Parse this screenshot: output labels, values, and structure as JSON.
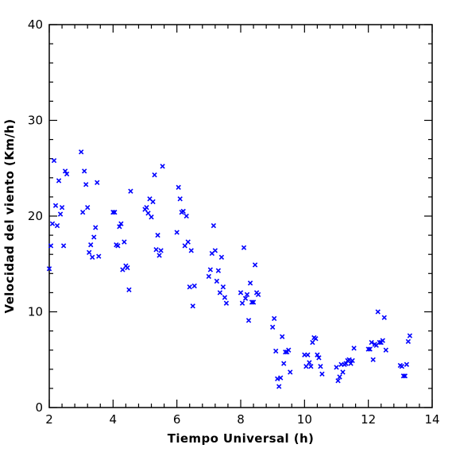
{
  "chart_data": {
    "type": "scatter",
    "title": "",
    "xlabel": "Tiempo Universal (h)",
    "ylabel": "Velocidad del viento (Km/h)",
    "xlim": [
      2,
      14
    ],
    "ylim": [
      0,
      40
    ],
    "x_ticks": [
      2,
      4,
      6,
      8,
      10,
      12,
      14
    ],
    "y_ticks": [
      0,
      10,
      20,
      30,
      40
    ],
    "grid": false,
    "legend": "none",
    "marker": "x",
    "marker_color": "#0000ff",
    "points": [
      [
        2.0,
        14.5
      ],
      [
        2.05,
        16.9
      ],
      [
        2.1,
        19.2
      ],
      [
        2.15,
        25.8
      ],
      [
        2.2,
        21.1
      ],
      [
        2.25,
        19.0
      ],
      [
        2.3,
        23.7
      ],
      [
        2.35,
        20.2
      ],
      [
        2.4,
        20.9
      ],
      [
        2.45,
        16.9
      ],
      [
        2.5,
        24.7
      ],
      [
        2.55,
        24.4
      ],
      [
        3.0,
        26.7
      ],
      [
        3.05,
        20.4
      ],
      [
        3.1,
        24.7
      ],
      [
        3.15,
        23.3
      ],
      [
        3.2,
        20.9
      ],
      [
        3.25,
        16.2
      ],
      [
        3.3,
        17.0
      ],
      [
        3.35,
        15.7
      ],
      [
        3.4,
        17.8
      ],
      [
        3.45,
        18.8
      ],
      [
        3.5,
        23.5
      ],
      [
        3.55,
        15.8
      ],
      [
        4.0,
        20.4
      ],
      [
        4.05,
        20.4
      ],
      [
        4.1,
        17.0
      ],
      [
        4.15,
        16.9
      ],
      [
        4.2,
        18.9
      ],
      [
        4.25,
        19.2
      ],
      [
        4.3,
        14.4
      ],
      [
        4.35,
        17.3
      ],
      [
        4.4,
        14.8
      ],
      [
        4.45,
        14.6
      ],
      [
        4.5,
        12.3
      ],
      [
        4.55,
        22.6
      ],
      [
        5.0,
        20.7
      ],
      [
        5.05,
        20.9
      ],
      [
        5.1,
        20.3
      ],
      [
        5.15,
        21.8
      ],
      [
        5.2,
        19.9
      ],
      [
        5.25,
        21.5
      ],
      [
        5.3,
        24.3
      ],
      [
        5.35,
        16.5
      ],
      [
        5.4,
        18.0
      ],
      [
        5.45,
        15.9
      ],
      [
        5.5,
        16.4
      ],
      [
        5.55,
        25.2
      ],
      [
        6.0,
        18.3
      ],
      [
        6.05,
        23.0
      ],
      [
        6.1,
        21.8
      ],
      [
        6.15,
        20.4
      ],
      [
        6.2,
        20.5
      ],
      [
        6.25,
        16.9
      ],
      [
        6.3,
        20.0
      ],
      [
        6.35,
        17.3
      ],
      [
        6.4,
        12.6
      ],
      [
        6.45,
        16.4
      ],
      [
        6.5,
        10.6
      ],
      [
        6.55,
        12.7
      ],
      [
        7.0,
        13.7
      ],
      [
        7.05,
        14.4
      ],
      [
        7.1,
        16.1
      ],
      [
        7.15,
        19.0
      ],
      [
        7.2,
        16.4
      ],
      [
        7.25,
        13.2
      ],
      [
        7.3,
        14.3
      ],
      [
        7.35,
        12.0
      ],
      [
        7.4,
        15.7
      ],
      [
        7.45,
        12.6
      ],
      [
        7.5,
        11.5
      ],
      [
        7.55,
        10.9
      ],
      [
        8.0,
        12.0
      ],
      [
        8.05,
        10.9
      ],
      [
        8.1,
        16.7
      ],
      [
        8.15,
        11.4
      ],
      [
        8.2,
        11.8
      ],
      [
        8.25,
        9.1
      ],
      [
        8.3,
        13.0
      ],
      [
        8.35,
        11.0
      ],
      [
        8.4,
        11.0
      ],
      [
        8.45,
        14.9
      ],
      [
        8.5,
        12.0
      ],
      [
        8.55,
        11.8
      ],
      [
        9.0,
        8.4
      ],
      [
        9.05,
        9.3
      ],
      [
        9.1,
        5.9
      ],
      [
        9.15,
        3.0
      ],
      [
        9.2,
        2.2
      ],
      [
        9.25,
        3.1
      ],
      [
        9.3,
        7.4
      ],
      [
        9.35,
        4.6
      ],
      [
        9.4,
        5.8
      ],
      [
        9.45,
        5.8
      ],
      [
        9.5,
        6.0
      ],
      [
        9.55,
        3.7
      ],
      [
        10.0,
        5.5
      ],
      [
        10.05,
        4.3
      ],
      [
        10.1,
        5.5
      ],
      [
        10.15,
        4.7
      ],
      [
        10.2,
        4.3
      ],
      [
        10.25,
        6.8
      ],
      [
        10.3,
        7.3
      ],
      [
        10.35,
        7.2
      ],
      [
        10.4,
        5.5
      ],
      [
        10.45,
        5.2
      ],
      [
        10.5,
        4.3
      ],
      [
        10.55,
        3.5
      ],
      [
        11.0,
        4.2
      ],
      [
        11.05,
        2.8
      ],
      [
        11.1,
        3.2
      ],
      [
        11.15,
        4.5
      ],
      [
        11.2,
        3.7
      ],
      [
        11.25,
        4.5
      ],
      [
        11.3,
        4.6
      ],
      [
        11.35,
        4.9
      ],
      [
        11.4,
        5.0
      ],
      [
        11.45,
        4.6
      ],
      [
        11.5,
        4.9
      ],
      [
        11.55,
        6.2
      ],
      [
        12.0,
        6.1
      ],
      [
        12.05,
        6.1
      ],
      [
        12.1,
        6.8
      ],
      [
        12.15,
        5.0
      ],
      [
        12.2,
        6.6
      ],
      [
        12.25,
        6.5
      ],
      [
        12.3,
        10.0
      ],
      [
        12.35,
        6.8
      ],
      [
        12.4,
        6.8
      ],
      [
        12.45,
        7.0
      ],
      [
        12.5,
        9.4
      ],
      [
        12.55,
        6.0
      ],
      [
        13.0,
        4.4
      ],
      [
        13.05,
        4.3
      ],
      [
        13.1,
        3.3
      ],
      [
        13.15,
        3.3
      ],
      [
        13.2,
        4.5
      ],
      [
        13.25,
        6.9
      ],
      [
        13.3,
        7.5
      ]
    ]
  }
}
